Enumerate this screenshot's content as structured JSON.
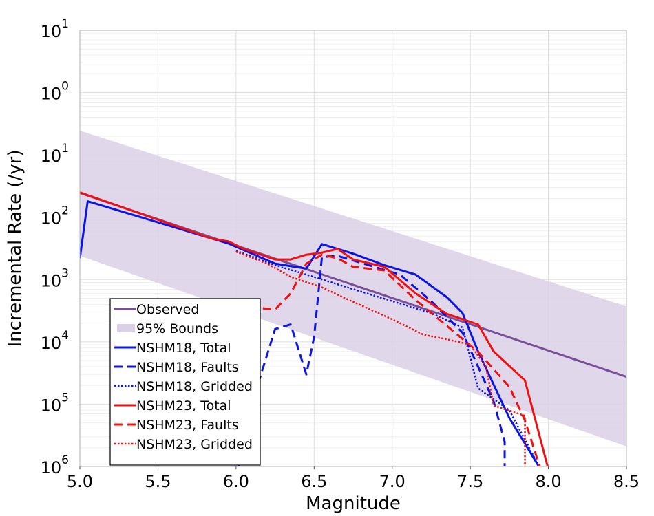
{
  "chart_data": {
    "type": "line",
    "title": "",
    "xlabel": "Magnitude",
    "ylabel": "Incremental Rate (/yr)",
    "xlim": [
      5.0,
      8.5
    ],
    "ylim": [
      1e-06,
      10
    ],
    "y_scale": "log",
    "grid": true,
    "legend_position": "lower-left",
    "x_ticks": [
      "5.0",
      "5.5",
      "6.0",
      "6.5",
      "7.0",
      "7.5",
      "8.0",
      "8.5"
    ],
    "y_ticks": [
      {
        "base": "10",
        "exp": "1"
      },
      {
        "base": "10",
        "exp": "0"
      },
      {
        "base": "10",
        "exp": "1"
      },
      {
        "base": "10",
        "exp": "2"
      },
      {
        "base": "10",
        "exp": "3"
      },
      {
        "base": "10",
        "exp": "4"
      },
      {
        "base": "10",
        "exp": "5"
      },
      {
        "base": "10",
        "exp": "6"
      }
    ],
    "bounds": {
      "name": "95% Bounds",
      "color": "#dcd0e6",
      "x": [
        5.0,
        8.5
      ],
      "lower": [
        0.0024,
        2.1e-06
      ],
      "upper": [
        0.245,
        0.00037
      ]
    },
    "series": [
      {
        "name": "Observed",
        "color": "#7a4f9a",
        "style": "solid",
        "x": [
          5.0,
          8.5
        ],
        "y": [
          0.0245,
          2.75e-05
        ]
      },
      {
        "name": "NSHM18, Total",
        "color": "#0a14e6",
        "style": "solid",
        "x": [
          5.0,
          5.05,
          5.95,
          6.25,
          6.45,
          6.55,
          6.75,
          6.95,
          7.15,
          7.35,
          7.45,
          7.55,
          7.75,
          7.95
        ],
        "y": [
          0.0022,
          0.018,
          0.0038,
          0.0018,
          0.0015,
          0.0037,
          0.0026,
          0.0017,
          0.0012,
          0.00052,
          0.00029,
          7e-05,
          6e-06,
          9e-07
        ]
      },
      {
        "name": "NSHM18, Faults",
        "color": "#0a14e6",
        "style": "dashed",
        "x": [
          6.02,
          6.02,
          6.15,
          6.25,
          6.35,
          6.45,
          6.5,
          6.55,
          6.65,
          6.85,
          7.05,
          7.25,
          7.45,
          7.55,
          7.65,
          7.72,
          7.72
        ],
        "y": [
          5e-07,
          3.3e-05,
          2.5e-05,
          0.00016,
          0.00019,
          3e-05,
          0.00012,
          0.0023,
          0.0024,
          0.0017,
          0.0012,
          0.00045,
          0.00014,
          4e-05,
          1.1e-05,
          2.5e-06,
          5e-07
        ]
      },
      {
        "name": "NSHM18, Gridded",
        "color": "#0a14e6",
        "style": "dotted",
        "x": [
          6.0,
          6.25,
          6.5,
          6.75,
          7.0,
          7.25,
          7.45,
          7.55,
          7.75,
          7.95
        ],
        "y": [
          0.0029,
          0.0017,
          0.0011,
          0.0007,
          0.00045,
          0.00029,
          0.00017,
          1.8e-05,
          8e-06,
          9e-07
        ]
      },
      {
        "name": "NSHM23, Total",
        "color": "#f01010",
        "style": "solid",
        "x": [
          5.0,
          5.85,
          5.95,
          6.05,
          6.25,
          6.35,
          6.45,
          6.55,
          6.65,
          6.75,
          6.95,
          7.15,
          7.35,
          7.55,
          7.65,
          7.85,
          8.0
        ],
        "y": [
          0.025,
          0.0045,
          0.0041,
          0.0031,
          0.0021,
          0.0021,
          0.0025,
          0.0027,
          0.0031,
          0.0021,
          0.0016,
          0.0006,
          0.00028,
          0.00019,
          7e-05,
          2.4e-05,
          9e-07
        ]
      },
      {
        "name": "NSHM23, Faults",
        "color": "#f01010",
        "style": "dashed",
        "x": [
          5.55,
          5.55,
          5.75,
          5.9,
          5.95,
          6.05,
          6.15,
          6.25,
          6.35,
          6.45,
          6.55,
          6.65,
          6.75,
          6.95,
          7.15,
          7.35,
          7.55,
          7.75,
          7.85,
          7.95
        ],
        "y": [
          7e-07,
          2.5e-05,
          3e-05,
          0.0002,
          0.0003,
          0.00026,
          0.00035,
          0.00033,
          0.0006,
          0.0018,
          0.0025,
          0.0022,
          0.0016,
          0.0014,
          0.00047,
          0.00018,
          6.9e-05,
          1.9e-05,
          5.5e-06,
          9e-07
        ]
      },
      {
        "name": "NSHM23, Gridded",
        "color": "#f01010",
        "style": "dotted",
        "x": [
          6.0,
          6.2,
          6.35,
          6.55,
          6.7,
          7.0,
          7.2,
          7.35,
          7.5,
          7.6,
          7.65,
          7.85,
          7.85
        ],
        "y": [
          0.0028,
          0.0018,
          0.0011,
          0.00075,
          0.0005,
          0.00023,
          0.00013,
          0.00011,
          9e-05,
          4e-05,
          9.5e-06,
          6.5e-06,
          1e-06
        ]
      }
    ]
  }
}
